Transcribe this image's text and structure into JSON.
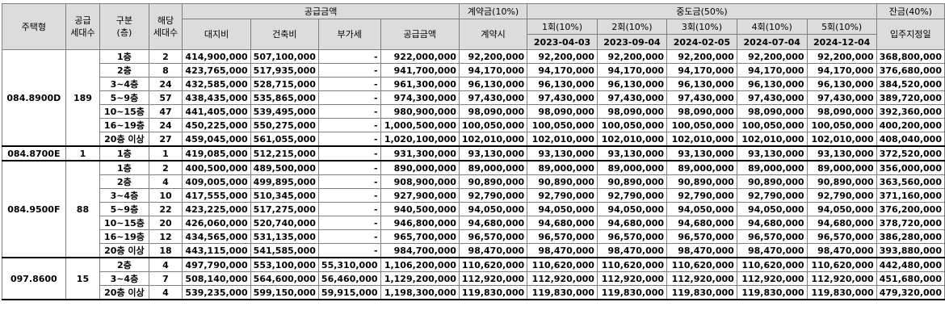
{
  "header": {
    "house_type": "주택형",
    "supply_units_1": "공급",
    "supply_units_2": "세대수",
    "division_1": "구분",
    "division_2": "(층)",
    "applicable_units_1": "해당",
    "applicable_units_2": "세대수",
    "supply_price_group": "공급금액",
    "contract_group": "계약금(10%)",
    "middle_group": "중도금(50%)",
    "balance_group": "잔금(40%)",
    "land": "대지비",
    "building": "건축비",
    "vat": "부가세",
    "supply_total": "공급금액",
    "contract_time": "계약시",
    "installments": [
      {
        "label": "1회(10%)",
        "date": "2023-04-03"
      },
      {
        "label": "2회(10%)",
        "date": "2023-09-04"
      },
      {
        "label": "3회(10%)",
        "date": "2024-02-05"
      },
      {
        "label": "4회(10%)",
        "date": "2024-07-04"
      },
      {
        "label": "5회(10%)",
        "date": "2024-12-04"
      }
    ],
    "move_in": "입주지정일"
  },
  "groups": [
    {
      "type": "084.8900D",
      "units": "189",
      "rows": [
        {
          "floor": "1층",
          "count": "2",
          "land": "414,900,000",
          "building": "507,100,000",
          "vat": "-",
          "supply": "922,000,000",
          "contract": "92,200,000",
          "m1": "92,200,000",
          "m2": "92,200,000",
          "m3": "92,200,000",
          "m4": "92,200,000",
          "m5": "92,200,000",
          "balance": "368,800,000"
        },
        {
          "floor": "2층",
          "count": "8",
          "land": "423,765,000",
          "building": "517,935,000",
          "vat": "-",
          "supply": "941,700,000",
          "contract": "94,170,000",
          "m1": "94,170,000",
          "m2": "94,170,000",
          "m3": "94,170,000",
          "m4": "94,170,000",
          "m5": "94,170,000",
          "balance": "376,680,000"
        },
        {
          "floor": "3~4층",
          "count": "24",
          "land": "432,585,000",
          "building": "528,715,000",
          "vat": "-",
          "supply": "961,300,000",
          "contract": "96,130,000",
          "m1": "96,130,000",
          "m2": "96,130,000",
          "m3": "96,130,000",
          "m4": "96,130,000",
          "m5": "96,130,000",
          "balance": "384,520,000"
        },
        {
          "floor": "5~9층",
          "count": "57",
          "land": "438,435,000",
          "building": "535,865,000",
          "vat": "-",
          "supply": "974,300,000",
          "contract": "97,430,000",
          "m1": "97,430,000",
          "m2": "97,430,000",
          "m3": "97,430,000",
          "m4": "97,430,000",
          "m5": "97,430,000",
          "balance": "389,720,000"
        },
        {
          "floor": "10~15층",
          "count": "47",
          "land": "441,405,000",
          "building": "539,495,000",
          "vat": "-",
          "supply": "980,900,000",
          "contract": "98,090,000",
          "m1": "98,090,000",
          "m2": "98,090,000",
          "m3": "98,090,000",
          "m4": "98,090,000",
          "m5": "98,090,000",
          "balance": "392,360,000"
        },
        {
          "floor": "16~19층",
          "count": "24",
          "land": "450,225,000",
          "building": "550,275,000",
          "vat": "-",
          "supply": "1,000,500,000",
          "contract": "100,050,000",
          "m1": "100,050,000",
          "m2": "100,050,000",
          "m3": "100,050,000",
          "m4": "100,050,000",
          "m5": "100,050,000",
          "balance": "400,200,000"
        },
        {
          "floor": "20층 이상",
          "count": "27",
          "land": "459,045,000",
          "building": "561,055,000",
          "vat": "-",
          "supply": "1,020,100,000",
          "contract": "102,010,000",
          "m1": "102,010,000",
          "m2": "102,010,000",
          "m3": "102,010,000",
          "m4": "102,010,000",
          "m5": "102,010,000",
          "balance": "408,040,000"
        }
      ]
    },
    {
      "type": "084.8700E",
      "units": "1",
      "rows": [
        {
          "floor": "1층",
          "count": "1",
          "land": "419,085,000",
          "building": "512,215,000",
          "vat": "-",
          "supply": "931,300,000",
          "contract": "93,130,000",
          "m1": "93,130,000",
          "m2": "93,130,000",
          "m3": "93,130,000",
          "m4": "93,130,000",
          "m5": "93,130,000",
          "balance": "372,520,000"
        }
      ]
    },
    {
      "type": "084.9500F",
      "units": "88",
      "rows": [
        {
          "floor": "1층",
          "count": "2",
          "land": "400,500,000",
          "building": "489,500,000",
          "vat": "-",
          "supply": "890,000,000",
          "contract": "89,000,000",
          "m1": "89,000,000",
          "m2": "89,000,000",
          "m3": "89,000,000",
          "m4": "89,000,000",
          "m5": "89,000,000",
          "balance": "356,000,000"
        },
        {
          "floor": "2층",
          "count": "4",
          "land": "409,005,000",
          "building": "499,895,000",
          "vat": "-",
          "supply": "908,900,000",
          "contract": "90,890,000",
          "m1": "90,890,000",
          "m2": "90,890,000",
          "m3": "90,890,000",
          "m4": "90,890,000",
          "m5": "90,890,000",
          "balance": "363,560,000"
        },
        {
          "floor": "3~4층",
          "count": "10",
          "land": "417,555,000",
          "building": "510,345,000",
          "vat": "-",
          "supply": "927,900,000",
          "contract": "92,790,000",
          "m1": "92,790,000",
          "m2": "92,790,000",
          "m3": "92,790,000",
          "m4": "92,790,000",
          "m5": "92,790,000",
          "balance": "371,160,000"
        },
        {
          "floor": "5~9층",
          "count": "22",
          "land": "423,225,000",
          "building": "517,275,000",
          "vat": "-",
          "supply": "940,500,000",
          "contract": "94,050,000",
          "m1": "94,050,000",
          "m2": "94,050,000",
          "m3": "94,050,000",
          "m4": "94,050,000",
          "m5": "94,050,000",
          "balance": "376,200,000"
        },
        {
          "floor": "10~15층",
          "count": "20",
          "land": "426,060,000",
          "building": "520,740,000",
          "vat": "-",
          "supply": "946,800,000",
          "contract": "94,680,000",
          "m1": "94,680,000",
          "m2": "94,680,000",
          "m3": "94,680,000",
          "m4": "94,680,000",
          "m5": "94,680,000",
          "balance": "378,720,000"
        },
        {
          "floor": "16~19층",
          "count": "12",
          "land": "434,565,000",
          "building": "531,135,000",
          "vat": "-",
          "supply": "965,700,000",
          "contract": "96,570,000",
          "m1": "96,570,000",
          "m2": "96,570,000",
          "m3": "96,570,000",
          "m4": "96,570,000",
          "m5": "96,570,000",
          "balance": "386,280,000"
        },
        {
          "floor": "20층 이상",
          "count": "18",
          "land": "443,115,000",
          "building": "541,585,000",
          "vat": "-",
          "supply": "984,700,000",
          "contract": "98,470,000",
          "m1": "98,470,000",
          "m2": "98,470,000",
          "m3": "98,470,000",
          "m4": "98,470,000",
          "m5": "98,470,000",
          "balance": "393,880,000"
        }
      ]
    },
    {
      "type": "097.8600",
      "units": "15",
      "rows": [
        {
          "floor": "2층",
          "count": "4",
          "land": "497,790,000",
          "building": "553,100,000",
          "vat": "55,310,000",
          "supply": "1,106,200,000",
          "contract": "110,620,000",
          "m1": "110,620,000",
          "m2": "110,620,000",
          "m3": "110,620,000",
          "m4": "110,620,000",
          "m5": "110,620,000",
          "balance": "442,480,000"
        },
        {
          "floor": "3~4층",
          "count": "7",
          "land": "508,140,000",
          "building": "564,600,000",
          "vat": "56,460,000",
          "supply": "1,129,200,000",
          "contract": "112,920,000",
          "m1": "112,920,000",
          "m2": "112,920,000",
          "m3": "112,920,000",
          "m4": "112,920,000",
          "m5": "112,920,000",
          "balance": "451,680,000"
        },
        {
          "floor": "20층 이상",
          "count": "4",
          "land": "539,235,000",
          "building": "599,150,000",
          "vat": "59,915,000",
          "supply": "1,198,300,000",
          "contract": "119,830,000",
          "m1": "119,830,000",
          "m2": "119,830,000",
          "m3": "119,830,000",
          "m4": "119,830,000",
          "m5": "119,830,000",
          "balance": "479,320,000"
        }
      ]
    }
  ]
}
